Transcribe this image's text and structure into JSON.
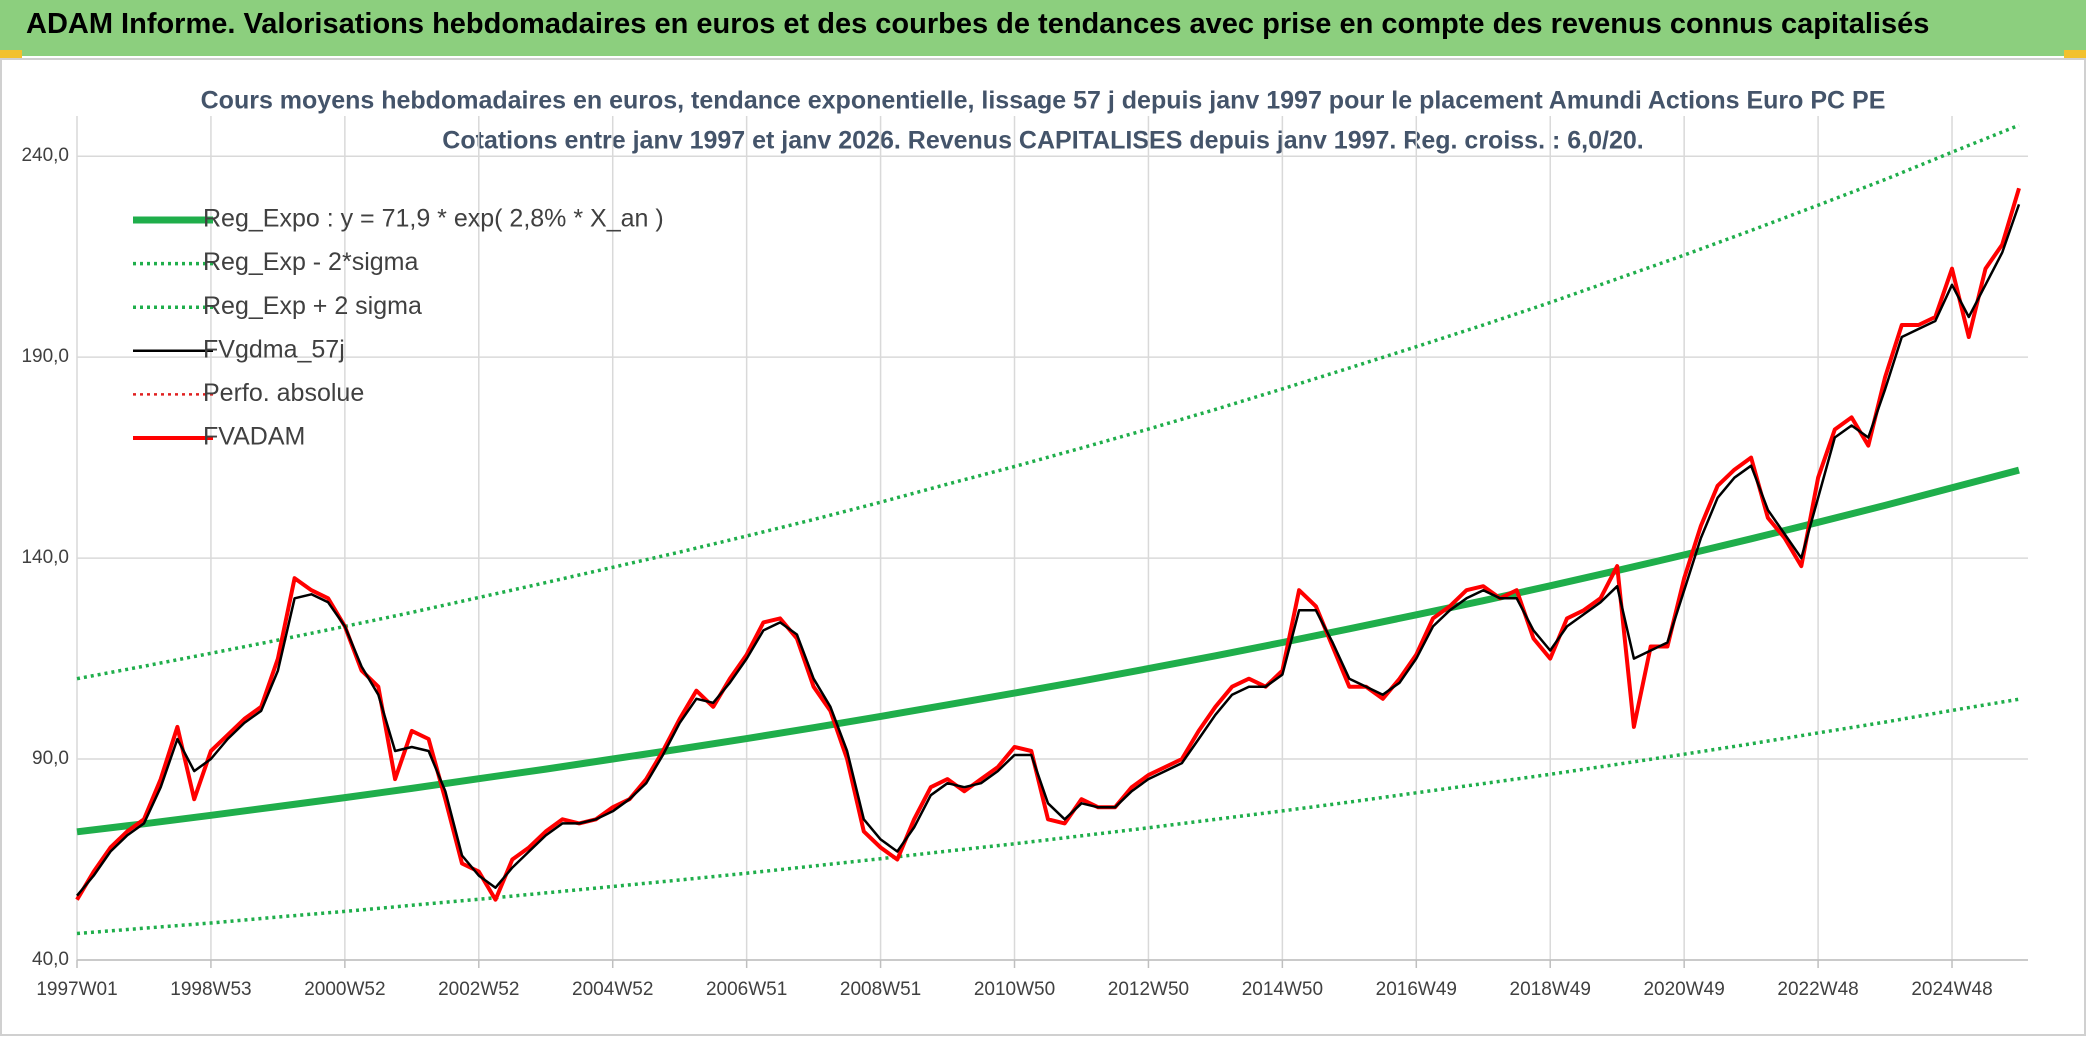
{
  "banner": "ADAM Informe. Valorisations hebdomadaires en euros et des courbes de tendances avec prise en compte des revenus connus capitalisés",
  "chart_data": {
    "type": "line",
    "title": "Cours moyens hebdomadaires en euros, tendance exponentielle, lissage 57 j depuis janv 1997 pour le placement Amundi Actions Euro PC PE",
    "subtitle": "Cotations entre janv 1997 et janv 2026. Revenus CAPITALISES depuis janv 1997. Reg. croiss. : 6,0/20.",
    "xlim": [
      0,
      1515
    ],
    "xticks": [
      {
        "value": 0,
        "label": "1997W01"
      },
      {
        "value": 104,
        "label": "1998W53"
      },
      {
        "value": 208,
        "label": "2000W52"
      },
      {
        "value": 312,
        "label": "2002W52"
      },
      {
        "value": 416,
        "label": "2004W52"
      },
      {
        "value": 520,
        "label": "2006W51"
      },
      {
        "value": 624,
        "label": "2008W51"
      },
      {
        "value": 728,
        "label": "2010W50"
      },
      {
        "value": 832,
        "label": "2012W50"
      },
      {
        "value": 936,
        "label": "2014W50"
      },
      {
        "value": 1040,
        "label": "2016W49"
      },
      {
        "value": 1144,
        "label": "2018W49"
      },
      {
        "value": 1248,
        "label": "2020W49"
      },
      {
        "value": 1352,
        "label": "2022W48"
      },
      {
        "value": 1456,
        "label": "2024W48"
      }
    ],
    "ylim": [
      40,
      250
    ],
    "yticks": [
      {
        "value": 40,
        "label": "40,0"
      },
      {
        "value": 90,
        "label": "90,0"
      },
      {
        "value": 140,
        "label": "140,0"
      },
      {
        "value": 190,
        "label": "190,0"
      },
      {
        "value": 240,
        "label": "240,0"
      }
    ],
    "grid": true,
    "legend": "upper left",
    "x": [
      0,
      13,
      26,
      39,
      52,
      65,
      78,
      91,
      104,
      117,
      130,
      143,
      156,
      169,
      182,
      195,
      208,
      221,
      234,
      247,
      260,
      273,
      286,
      299,
      312,
      325,
      338,
      351,
      364,
      377,
      390,
      403,
      416,
      429,
      442,
      455,
      468,
      481,
      494,
      507,
      520,
      533,
      546,
      559,
      572,
      585,
      598,
      611,
      624,
      637,
      650,
      663,
      676,
      689,
      702,
      715,
      728,
      741,
      754,
      767,
      780,
      793,
      806,
      819,
      832,
      845,
      858,
      871,
      884,
      897,
      910,
      923,
      936,
      949,
      962,
      975,
      988,
      1001,
      1014,
      1027,
      1040,
      1053,
      1066,
      1079,
      1092,
      1105,
      1118,
      1131,
      1144,
      1157,
      1170,
      1183,
      1196,
      1209,
      1222,
      1235,
      1248,
      1261,
      1274,
      1287,
      1300,
      1313,
      1326,
      1339,
      1352,
      1365,
      1378,
      1391,
      1404,
      1417,
      1430,
      1443,
      1456,
      1469,
      1482,
      1495,
      1508
    ],
    "series": [
      {
        "name": "Reg_Expo : y = 71,9 * exp( 2,8% *  X_an )",
        "color": "#1fae4b",
        "line_style": "solid",
        "x": [
          0,
          52,
          104,
          156,
          208,
          260,
          312,
          364,
          416,
          468,
          520,
          572,
          624,
          676,
          728,
          780,
          832,
          884,
          936,
          988,
          1040,
          1092,
          1144,
          1196,
          1248,
          1300,
          1352,
          1404,
          1456,
          1508
        ],
        "values": [
          71.9,
          73.9,
          76.0,
          78.2,
          80.4,
          82.7,
          85.1,
          87.5,
          90.0,
          92.5,
          95.1,
          97.8,
          100.6,
          103.5,
          106.4,
          109.4,
          112.5,
          115.7,
          119.0,
          122.4,
          125.9,
          129.4,
          133.1,
          136.9,
          140.8,
          144.8,
          148.9,
          153.1,
          157.5,
          161.9
        ]
      },
      {
        "name": "Reg_Exp - 2*sigma",
        "color": "#1fae4b",
        "line_style": "dotted",
        "x": [
          0,
          52,
          104,
          156,
          208,
          260,
          312,
          364,
          416,
          468,
          520,
          572,
          624,
          676,
          728,
          780,
          832,
          884,
          936,
          988,
          1040,
          1092,
          1144,
          1196,
          1248,
          1300,
          1352,
          1404,
          1456,
          1508
        ],
        "values": [
          46.6,
          47.9,
          49.2,
          50.7,
          52.1,
          53.6,
          55.1,
          56.7,
          58.3,
          59.9,
          61.6,
          63.4,
          65.2,
          67.1,
          68.9,
          70.9,
          72.9,
          75.0,
          77.1,
          79.3,
          81.6,
          83.9,
          86.2,
          88.7,
          91.2,
          93.8,
          96.5,
          99.2,
          102.1,
          104.9
        ]
      },
      {
        "name": "Reg_Exp + 2 sigma",
        "color": "#1fae4b",
        "line_style": "dotted",
        "x": [
          0,
          52,
          104,
          156,
          208,
          260,
          312,
          364,
          416,
          468,
          520,
          572,
          624,
          676,
          728,
          780,
          832,
          884,
          936,
          988,
          1040,
          1092,
          1144,
          1196,
          1248,
          1300,
          1352,
          1404,
          1456,
          1508
        ],
        "values": [
          110.0,
          113.1,
          116.3,
          119.6,
          123.0,
          126.5,
          130.2,
          133.9,
          137.7,
          141.5,
          145.5,
          149.6,
          153.9,
          158.4,
          162.8,
          167.4,
          172.1,
          177.0,
          182.1,
          187.3,
          192.6,
          198.0,
          203.6,
          209.5,
          215.4,
          221.5,
          227.8,
          234.2,
          241.0,
          247.7
        ]
      },
      {
        "name": "FVgdma_57j",
        "color": "#000000",
        "line_style": "solid",
        "values": [
          56,
          61,
          67,
          71,
          74,
          83,
          95,
          87,
          90,
          95,
          99,
          102,
          112,
          130,
          131,
          129,
          123,
          113,
          106,
          92,
          93,
          92,
          82,
          66,
          61,
          58,
          63,
          67,
          71,
          74,
          74,
          75,
          77,
          80,
          84,
          91,
          99,
          105,
          104,
          109,
          115,
          122,
          124,
          121,
          110,
          103,
          92,
          75,
          70,
          67,
          73,
          81,
          84,
          83,
          84,
          87,
          91,
          91,
          79,
          75,
          79,
          78,
          78,
          82,
          85,
          87,
          89,
          95,
          101,
          106,
          108,
          108,
          111,
          127,
          127,
          119,
          110,
          108,
          106,
          109,
          115,
          123,
          127,
          130,
          132,
          130,
          130,
          122,
          117,
          123,
          126,
          129,
          133,
          115,
          117,
          119,
          132,
          145,
          155,
          160,
          163,
          152,
          146,
          140,
          155,
          170,
          173,
          170,
          182,
          195,
          197,
          199,
          208,
          200,
          208,
          216,
          228
        ]
      },
      {
        "name": "Perfo. absolue",
        "color": "#e02020",
        "line_style": "dotted",
        "values": [
          55,
          62,
          68,
          72,
          75,
          85,
          98,
          80,
          92,
          96,
          100,
          103,
          115,
          135,
          132,
          130,
          123,
          112,
          108,
          85,
          97,
          95,
          80,
          64,
          62,
          55,
          65,
          68,
          72,
          75,
          74,
          75,
          78,
          80,
          85,
          92,
          100,
          107,
          103,
          110,
          116,
          124,
          125,
          120,
          108,
          102,
          90,
          72,
          68,
          65,
          75,
          83,
          85,
          82,
          85,
          88,
          93,
          92,
          75,
          74,
          80,
          78,
          78,
          83,
          86,
          88,
          90,
          97,
          103,
          108,
          110,
          108,
          112,
          132,
          128,
          118,
          108,
          108,
          105,
          110,
          116,
          125,
          128,
          132,
          133,
          130,
          132,
          120,
          115,
          125,
          127,
          130,
          138,
          98,
          118,
          118,
          135,
          148,
          158,
          162,
          165,
          150,
          145,
          138,
          160,
          172,
          175,
          168,
          185,
          198,
          198,
          200,
          212,
          195,
          212,
          218,
          232
        ]
      },
      {
        "name": "FVADAM",
        "color": "#ff0000",
        "line_style": "solid",
        "values": [
          55,
          62,
          68,
          72,
          75,
          85,
          98,
          80,
          92,
          96,
          100,
          103,
          115,
          135,
          132,
          130,
          123,
          112,
          108,
          85,
          97,
          95,
          80,
          64,
          62,
          55,
          65,
          68,
          72,
          75,
          74,
          75,
          78,
          80,
          85,
          92,
          100,
          107,
          103,
          110,
          116,
          124,
          125,
          120,
          108,
          102,
          90,
          72,
          68,
          65,
          75,
          83,
          85,
          82,
          85,
          88,
          93,
          92,
          75,
          74,
          80,
          78,
          78,
          83,
          86,
          88,
          90,
          97,
          103,
          108,
          110,
          108,
          112,
          132,
          128,
          118,
          108,
          108,
          105,
          110,
          116,
          125,
          128,
          132,
          133,
          130,
          132,
          120,
          115,
          125,
          127,
          130,
          138,
          98,
          118,
          118,
          135,
          148,
          158,
          162,
          165,
          150,
          145,
          138,
          160,
          172,
          175,
          168,
          185,
          198,
          198,
          200,
          212,
          195,
          212,
          218,
          232
        ]
      }
    ]
  }
}
